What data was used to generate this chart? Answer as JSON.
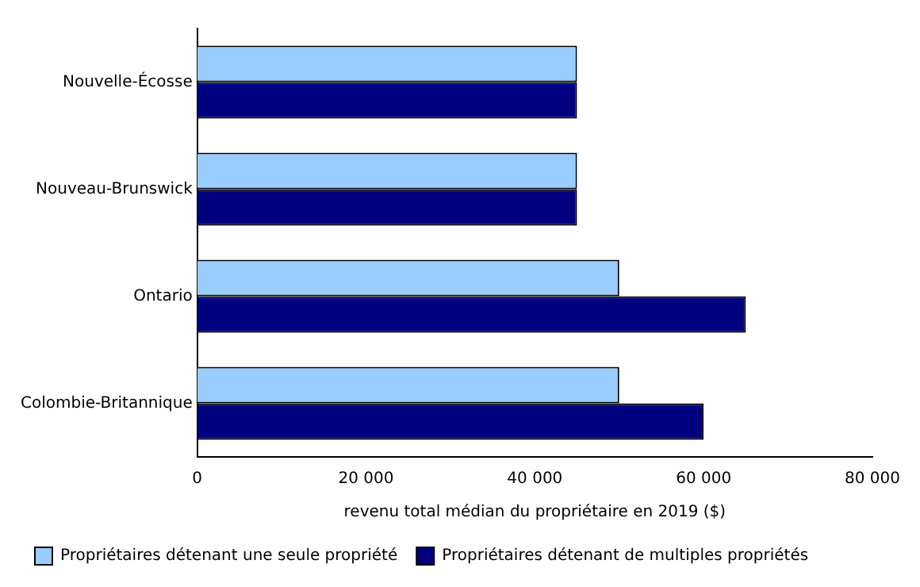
{
  "chart_data": {
    "type": "bar",
    "orientation": "horizontal",
    "xlabel": "revenu total médian du propriétaire en 2019 ($)",
    "categories": [
      "Nouvelle-Écosse",
      "Nouveau-Brunswick",
      "Ontario",
      "Colombie-Britannique"
    ],
    "series": [
      {
        "name": "Propriétaires détenant une seule propriété",
        "color": "#99ccff",
        "values": [
          45000,
          45000,
          50000,
          50000
        ]
      },
      {
        "name": "Propriétaires détenant de multiples propriétés",
        "color": "#000080",
        "values": [
          45000,
          45000,
          65000,
          60000
        ]
      }
    ],
    "xlim": [
      0,
      80000
    ],
    "xticks": [
      {
        "value": 0,
        "label": "0"
      },
      {
        "value": 20000,
        "label": "20 000"
      },
      {
        "value": 40000,
        "label": "40 000"
      },
      {
        "value": 60000,
        "label": "60 000"
      },
      {
        "value": 80000,
        "label": "80 000"
      }
    ],
    "grid": false,
    "legend": "bottom"
  }
}
